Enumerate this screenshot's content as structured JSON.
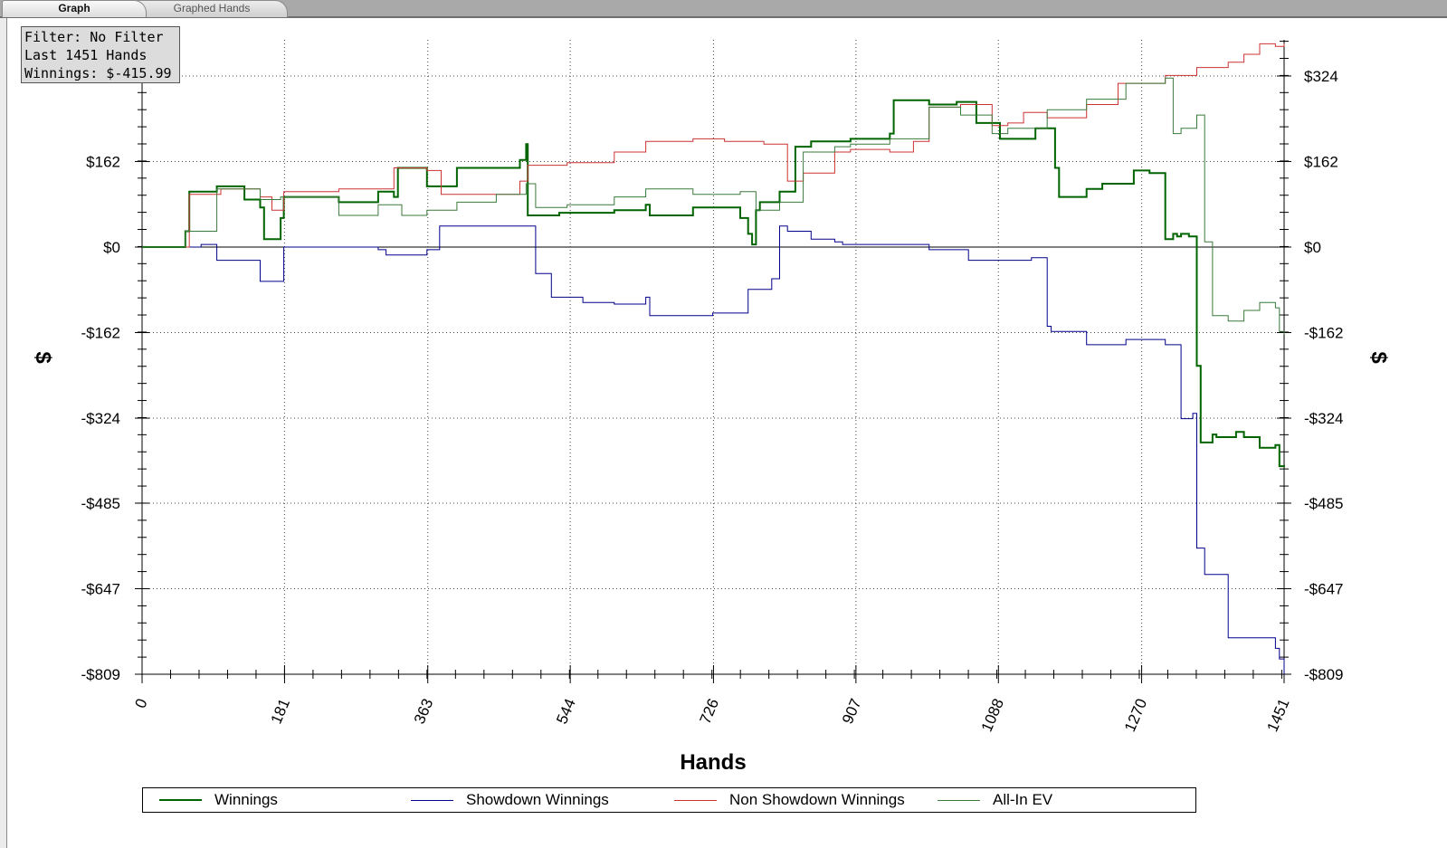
{
  "tabs": [
    {
      "label": "Graph",
      "active": true
    },
    {
      "label": "Graphed Hands",
      "active": false
    }
  ],
  "filter_box": {
    "line1": "Filter: No Filter",
    "line2": "Last  1451 Hands",
    "line3": "Winnings: $-415.99"
  },
  "chart_data": {
    "type": "line",
    "xlabel": "Hands",
    "ylabel": "$",
    "xlim": [
      0,
      1451
    ],
    "ylim": [
      -809,
      400
    ],
    "x_ticks": [
      0,
      181,
      363,
      544,
      726,
      907,
      1088,
      1270,
      1451
    ],
    "y_ticks": [
      324,
      162,
      0,
      -162,
      -324,
      -485,
      -647,
      -809
    ],
    "y_tick_labels": [
      "$324",
      "$162",
      "$0",
      "-$162",
      "-$324",
      "-$485",
      "-$647",
      "-$809"
    ],
    "grid": true,
    "legend": "bottom",
    "series": [
      {
        "name": "Winnings",
        "color": "#006400",
        "x": [
          0,
          55,
          60,
          95,
          130,
          150,
          155,
          176,
          180,
          250,
          300,
          320,
          325,
          362,
          400,
          480,
          488,
          490,
          530,
          600,
          640,
          645,
          700,
          760,
          770,
          775,
          780,
          785,
          810,
          830,
          850,
          900,
          950,
          955,
          1000,
          1035,
          1060,
          1090,
          1135,
          1160,
          1165,
          1200,
          1220,
          1260,
          1280,
          1300,
          1310,
          1315,
          1320,
          1330,
          1340,
          1345,
          1360,
          1365,
          1370,
          1390,
          1400,
          1420,
          1440,
          1445,
          1451
        ],
        "y": [
          0,
          30,
          105,
          115,
          90,
          75,
          15,
          55,
          95,
          85,
          105,
          95,
          150,
          115,
          150,
          165,
          195,
          60,
          65,
          70,
          80,
          60,
          75,
          55,
          25,
          5,
          70,
          85,
          105,
          190,
          200,
          205,
          215,
          278,
          270,
          275,
          235,
          205,
          225,
          150,
          95,
          110,
          120,
          145,
          140,
          15,
          25,
          20,
          25,
          20,
          -225,
          -370,
          -355,
          -360,
          -360,
          -350,
          -360,
          -380,
          -375,
          -415,
          -415.99
        ]
      },
      {
        "name": "Showdown Winnings",
        "color": "#00008b",
        "x": [
          0,
          75,
          95,
          150,
          176,
          180,
          300,
          310,
          362,
          375,
          378,
          490,
          500,
          520,
          560,
          600,
          640,
          645,
          720,
          725,
          760,
          770,
          800,
          810,
          820,
          850,
          880,
          890,
          1000,
          1050,
          1110,
          1130,
          1150,
          1155,
          1200,
          1250,
          1265,
          1300,
          1320,
          1330,
          1335,
          1340,
          1350,
          1380,
          1400,
          1440,
          1445,
          1451
        ],
        "y": [
          0,
          5,
          -25,
          -65,
          -65,
          0,
          -5,
          -15,
          -5,
          -5,
          40,
          40,
          -50,
          -95,
          -105,
          -108,
          -95,
          -130,
          -130,
          -125,
          -125,
          -80,
          -60,
          40,
          30,
          15,
          10,
          5,
          -5,
          -25,
          -25,
          -20,
          -150,
          -160,
          -185,
          -175,
          -175,
          -185,
          -325,
          -325,
          -315,
          -570,
          -620,
          -740,
          -740,
          -760,
          -780,
          -809
        ]
      },
      {
        "name": "Non Showdown Winnings",
        "color": "#cc3333",
        "x": [
          0,
          60,
          100,
          150,
          165,
          180,
          250,
          320,
          362,
          380,
          480,
          490,
          540,
          600,
          640,
          700,
          740,
          790,
          820,
          840,
          880,
          900,
          950,
          980,
          1000,
          1040,
          1080,
          1100,
          1120,
          1150,
          1200,
          1240,
          1260,
          1300,
          1340,
          1380,
          1400,
          1420,
          1440,
          1451
        ],
        "y": [
          0,
          100,
          110,
          95,
          70,
          105,
          110,
          150,
          145,
          100,
          125,
          155,
          160,
          180,
          200,
          205,
          200,
          195,
          125,
          140,
          180,
          185,
          180,
          200,
          265,
          270,
          230,
          235,
          255,
          245,
          270,
          310,
          310,
          325,
          340,
          350,
          365,
          385,
          380,
          385
        ]
      },
      {
        "name": "All-In EV",
        "color": "#3a7a3a",
        "x": [
          0,
          55,
          95,
          150,
          176,
          250,
          300,
          330,
          362,
          400,
          450,
          488,
          500,
          540,
          600,
          640,
          700,
          760,
          780,
          810,
          840,
          880,
          900,
          950,
          1000,
          1040,
          1080,
          1100,
          1150,
          1200,
          1250,
          1300,
          1310,
          1320,
          1340,
          1350,
          1360,
          1380,
          1400,
          1420,
          1440,
          1445,
          1451
        ],
        "y": [
          0,
          30,
          110,
          90,
          95,
          60,
          80,
          60,
          70,
          85,
          100,
          120,
          75,
          80,
          95,
          110,
          100,
          105,
          70,
          85,
          180,
          190,
          195,
          205,
          265,
          250,
          215,
          225,
          260,
          280,
          310,
          320,
          215,
          225,
          250,
          10,
          -130,
          -140,
          -120,
          -105,
          -115,
          -160,
          -165
        ]
      }
    ]
  }
}
